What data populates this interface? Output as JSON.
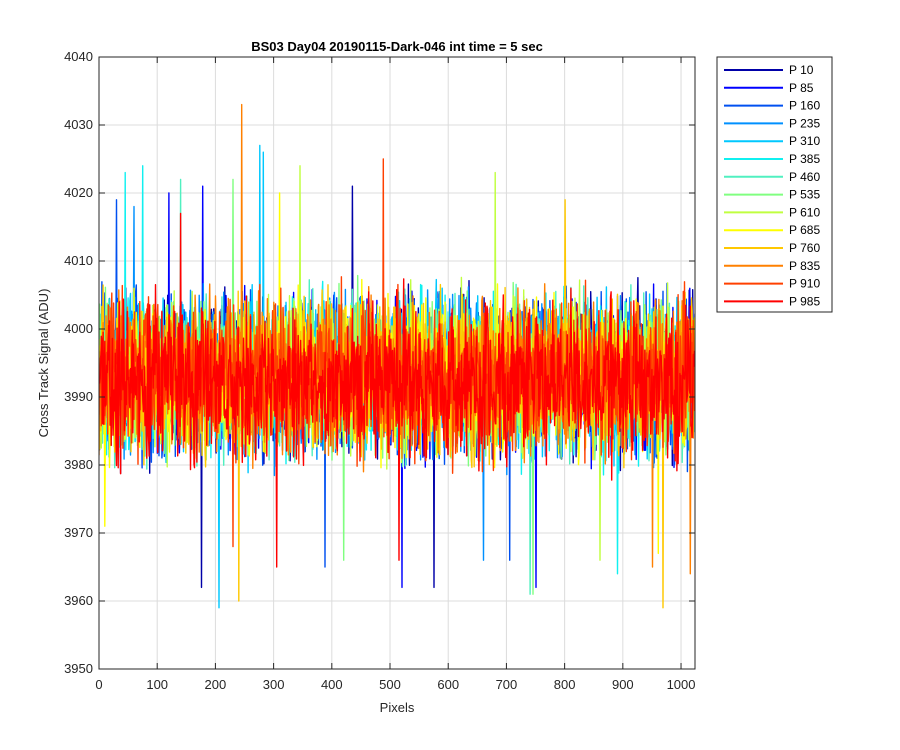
{
  "chart_data": {
    "type": "line",
    "title": "BS03 Day04 20190115-Dark-046 int time = 5 sec",
    "xlabel": "Pixels",
    "ylabel": "Cross Track Signal (ADU)",
    "xlim": [
      0,
      1024
    ],
    "ylim": [
      3950,
      4040
    ],
    "xticks": [
      0,
      100,
      200,
      300,
      400,
      500,
      600,
      700,
      800,
      900,
      1000
    ],
    "yticks": [
      3950,
      3960,
      3970,
      3980,
      3990,
      4000,
      4010,
      4020,
      4030,
      4040
    ],
    "grid": true,
    "legend_position": "outside-top-right",
    "n_points": 1024,
    "noise_model": "approximately uniform dark-frame noise around ~3992 ADU, typical range 3972-4012 with sparse excursions",
    "series": [
      {
        "name": "P 10",
        "color": "#0000a8",
        "mean": 3993,
        "spread": 10,
        "extremes": [
          {
            "x": 176,
            "y": 3962
          },
          {
            "x": 575,
            "y": 3962
          },
          {
            "x": 435,
            "y": 4021
          }
        ]
      },
      {
        "name": "P 85",
        "color": "#0000ff",
        "mean": 3993,
        "spread": 10,
        "extremes": [
          {
            "x": 520,
            "y": 3962
          },
          {
            "x": 750,
            "y": 3962
          },
          {
            "x": 178,
            "y": 4021
          },
          {
            "x": 120,
            "y": 4020
          }
        ]
      },
      {
        "name": "P 160",
        "color": "#0050f0",
        "mean": 3993,
        "spread": 10,
        "extremes": [
          {
            "x": 388,
            "y": 3965
          },
          {
            "x": 705,
            "y": 3966
          },
          {
            "x": 30,
            "y": 4019
          }
        ]
      },
      {
        "name": "P 235",
        "color": "#0090ff",
        "mean": 3993,
        "spread": 10,
        "extremes": [
          {
            "x": 660,
            "y": 3966
          },
          {
            "x": 60,
            "y": 4018
          }
        ]
      },
      {
        "name": "P 310",
        "color": "#00c8ff",
        "mean": 3993,
        "spread": 10,
        "extremes": [
          {
            "x": 206,
            "y": 3959
          },
          {
            "x": 282,
            "y": 4026
          },
          {
            "x": 276,
            "y": 4027
          }
        ]
      },
      {
        "name": "P 385",
        "color": "#10f0f0",
        "mean": 3993,
        "spread": 10,
        "extremes": [
          {
            "x": 75,
            "y": 4024
          },
          {
            "x": 45,
            "y": 4023
          },
          {
            "x": 890,
            "y": 3964
          }
        ]
      },
      {
        "name": "P 460",
        "color": "#50f0c0",
        "mean": 3993,
        "spread": 10,
        "extremes": [
          {
            "x": 740,
            "y": 3961
          },
          {
            "x": 140,
            "y": 4022
          }
        ]
      },
      {
        "name": "P 535",
        "color": "#80ff80",
        "mean": 3993,
        "spread": 10,
        "extremes": [
          {
            "x": 745,
            "y": 3961
          },
          {
            "x": 420,
            "y": 3966
          },
          {
            "x": 230,
            "y": 4022
          }
        ]
      },
      {
        "name": "P 610",
        "color": "#c0ff40",
        "mean": 3993,
        "spread": 10,
        "extremes": [
          {
            "x": 680,
            "y": 4023
          },
          {
            "x": 345,
            "y": 4024
          },
          {
            "x": 860,
            "y": 3966
          }
        ]
      },
      {
        "name": "P 685",
        "color": "#ffff00",
        "mean": 3993,
        "spread": 10,
        "extremes": [
          {
            "x": 10,
            "y": 3971
          },
          {
            "x": 960,
            "y": 3967
          },
          {
            "x": 310,
            "y": 4020
          }
        ]
      },
      {
        "name": "P 760",
        "color": "#ffc800",
        "mean": 3993,
        "spread": 10,
        "extremes": [
          {
            "x": 968,
            "y": 3959
          },
          {
            "x": 240,
            "y": 3960
          },
          {
            "x": 800,
            "y": 4019
          }
        ]
      },
      {
        "name": "P 835",
        "color": "#ff8000",
        "mean": 3993,
        "spread": 10,
        "extremes": [
          {
            "x": 245,
            "y": 4033
          },
          {
            "x": 1015,
            "y": 3964
          },
          {
            "x": 950,
            "y": 3965
          }
        ]
      },
      {
        "name": "P 910",
        "color": "#ff4000",
        "mean": 3993,
        "spread": 10,
        "extremes": [
          {
            "x": 488,
            "y": 4025
          },
          {
            "x": 230,
            "y": 3968
          }
        ]
      },
      {
        "name": "P 985",
        "color": "#ff0000",
        "mean": 3992,
        "spread": 10,
        "extremes": [
          {
            "x": 305,
            "y": 3965
          },
          {
            "x": 515,
            "y": 3966
          },
          {
            "x": 140,
            "y": 4017
          }
        ]
      }
    ]
  }
}
